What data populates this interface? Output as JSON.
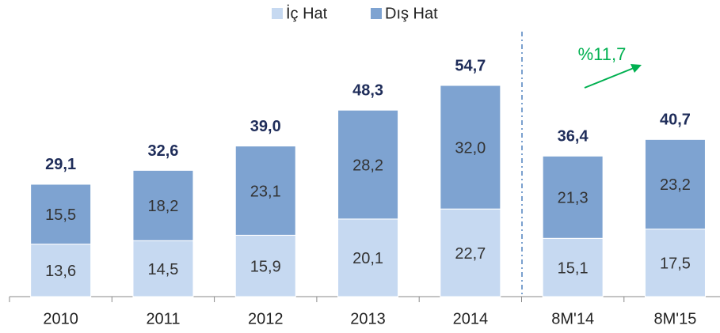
{
  "chart_data": {
    "type": "stacked_bar",
    "categories": [
      "2010",
      "2011",
      "2012",
      "2013",
      "2014",
      "8M'14",
      "8M'15"
    ],
    "series": [
      {
        "name": "İç Hat",
        "color": "#c6d9f1",
        "values": [
          13.6,
          14.5,
          15.9,
          20.1,
          22.7,
          15.1,
          17.5
        ],
        "value_labels": [
          "13,6",
          "14,5",
          "15,9",
          "20,1",
          "22,7",
          "15,1",
          "17,5"
        ]
      },
      {
        "name": "Dış Hat",
        "color": "#7ea3d1",
        "values": [
          15.5,
          18.2,
          23.1,
          28.2,
          32.0,
          21.3,
          23.2
        ],
        "value_labels": [
          "15,5",
          "18,2",
          "23,1",
          "28,2",
          "32,0",
          "21,3",
          "23,2"
        ]
      }
    ],
    "totals": [
      29.1,
      32.6,
      39.0,
      48.3,
      54.7,
      36.4,
      40.7
    ],
    "total_labels": [
      "29,1",
      "32,6",
      "39,0",
      "48,3",
      "54,7",
      "36,4",
      "40,7"
    ],
    "annotation": "%11,7",
    "legend": "top"
  }
}
